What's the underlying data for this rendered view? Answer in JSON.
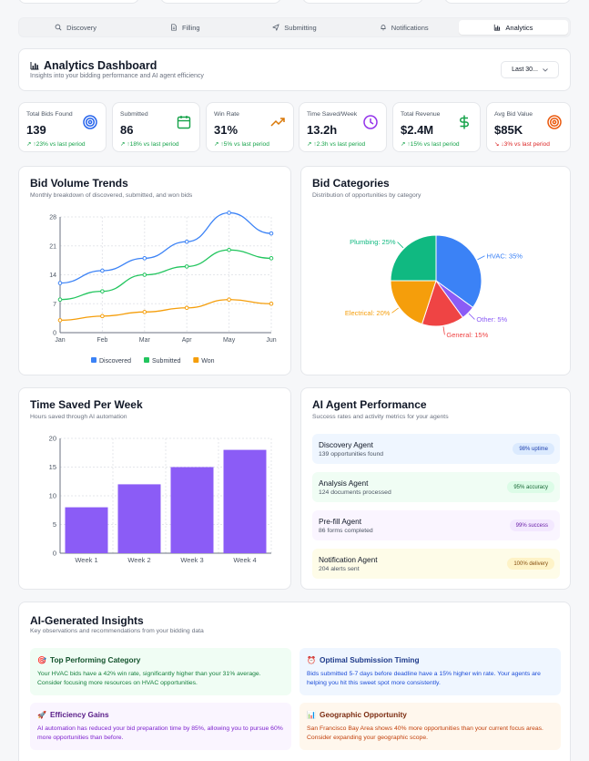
{
  "tabs": [
    {
      "label": "Discovery",
      "icon": "search-icon"
    },
    {
      "label": "Filling",
      "icon": "document-icon"
    },
    {
      "label": "Submitting",
      "icon": "send-icon"
    },
    {
      "label": "Notifications",
      "icon": "bell-icon"
    },
    {
      "label": "Analytics",
      "icon": "bar-chart-icon",
      "active": true
    }
  ],
  "header": {
    "title": "Analytics Dashboard",
    "subtitle": "Insights into your bidding performance and AI agent efficiency",
    "period": "Last 30..."
  },
  "stats": [
    {
      "label": "Total Bids Found",
      "value": "139",
      "change": "↗ ↑23% vs last period",
      "icon": "target-icon",
      "color": "#2563eb"
    },
    {
      "label": "Submitted",
      "value": "86",
      "change": "↗ ↑18% vs last period",
      "icon": "calendar-icon",
      "color": "#16a34a"
    },
    {
      "label": "Win Rate",
      "value": "31%",
      "change": "↗ ↑5% vs last period",
      "icon": "trend-up-icon",
      "color": "#d97706"
    },
    {
      "label": "Time Saved/Week",
      "value": "13.2h",
      "change": "↗ ↑2.3h vs last period",
      "icon": "clock-icon",
      "color": "#9333ea"
    },
    {
      "label": "Total Revenue",
      "value": "$2.4M",
      "change": "↗ ↑15% vs last period",
      "icon": "dollar-icon",
      "color": "#16a34a"
    },
    {
      "label": "Avg Bid Value",
      "value": "$85K",
      "change": "↘ ↓3% vs last period",
      "icon": "target-icon",
      "color": "#ea580c",
      "negative": true
    }
  ],
  "bid_volume": {
    "title": "Bid Volume Trends",
    "subtitle": "Monthly breakdown of discovered, submitted, and won bids"
  },
  "bid_categories": {
    "title": "Bid Categories",
    "subtitle": "Distribution of opportunities by category"
  },
  "time_saved": {
    "title": "Time Saved Per Week",
    "subtitle": "Hours saved through AI automation"
  },
  "chart_data": [
    {
      "type": "line",
      "title": "Bid Volume Trends",
      "categories": [
        "Jan",
        "Feb",
        "Mar",
        "Apr",
        "May",
        "Jun"
      ],
      "ylim": [
        0,
        28
      ],
      "yticks": [
        "0",
        "7",
        "14",
        "21",
        "28"
      ],
      "series": [
        {
          "name": "Discovered",
          "color": "#3b82f6",
          "values": [
            12,
            15,
            18,
            22,
            29,
            24
          ]
        },
        {
          "name": "Submitted",
          "color": "#22c55e",
          "values": [
            8,
            10,
            14,
            16,
            20,
            18
          ]
        },
        {
          "name": "Won",
          "color": "#f59e0b",
          "values": [
            3,
            4,
            5,
            6,
            8,
            7
          ]
        }
      ]
    },
    {
      "type": "pie",
      "title": "Bid Categories",
      "slices": [
        {
          "label": "HVAC: 35%",
          "value": 35,
          "color": "#3b82f6"
        },
        {
          "label": "Other: 5%",
          "value": 5,
          "color": "#8b5cf6"
        },
        {
          "label": "General: 15%",
          "value": 15,
          "color": "#ef4444"
        },
        {
          "label": "Electrical: 20%",
          "value": 20,
          "color": "#f59e0b"
        },
        {
          "label": "Plumbing: 25%",
          "value": 25,
          "color": "#10b981"
        }
      ]
    },
    {
      "type": "bar",
      "title": "Time Saved Per Week",
      "categories": [
        "Week 1",
        "Week 2",
        "Week 3",
        "Week 4"
      ],
      "values": [
        8,
        12,
        15,
        18
      ],
      "ylim": [
        0,
        20
      ],
      "yticks": [
        "0",
        "5",
        "10",
        "15",
        "20"
      ],
      "color": "#8b5cf6"
    }
  ],
  "agents": {
    "title": "AI Agent Performance",
    "subtitle": "Success rates and activity metrics for your agents",
    "items": [
      {
        "name": "Discovery Agent",
        "detail": "139 opportunities found",
        "badge": "98% uptime",
        "bg": "#eff6ff",
        "badge_bg": "#dbeafe",
        "badge_fg": "#1e40af"
      },
      {
        "name": "Analysis Agent",
        "detail": "124 documents processed",
        "badge": "95% accuracy",
        "bg": "#f0fdf4",
        "badge_bg": "#dcfce7",
        "badge_fg": "#166534"
      },
      {
        "name": "Pre-fill Agent",
        "detail": "86 forms completed",
        "badge": "99% success",
        "bg": "#faf5ff",
        "badge_bg": "#f3e8ff",
        "badge_fg": "#6b21a8"
      },
      {
        "name": "Notification Agent",
        "detail": "204 alerts sent",
        "badge": "100% delivery",
        "bg": "#fefce8",
        "badge_bg": "#fef3c7",
        "badge_fg": "#854d0e"
      }
    ]
  },
  "insights": {
    "title": "AI-Generated Insights",
    "subtitle": "Key observations and recommendations from your bidding data",
    "items": [
      {
        "emoji": "🎯",
        "title": "Top Performing Category",
        "body": "Your HVAC bids have a 42% win rate, significantly higher than your 31% average. Consider focusing more resources on HVAC opportunities.",
        "bg": "#f0fdf4",
        "fg": "#14532d",
        "body_fg": "#15803d"
      },
      {
        "emoji": "⏰",
        "title": "Optimal Submission Timing",
        "body": "Bids submitted 5-7 days before deadline have a 15% higher win rate. Your agents are helping you hit this sweet spot more consistently.",
        "bg": "#eff6ff",
        "fg": "#1e3a8a",
        "body_fg": "#1d4ed8"
      },
      {
        "emoji": "🚀",
        "title": "Efficiency Gains",
        "body": "AI automation has reduced your bid preparation time by 85%, allowing you to pursue 60% more opportunities than before.",
        "bg": "#faf5ff",
        "fg": "#581c87",
        "body_fg": "#7e22ce"
      },
      {
        "emoji": "📊",
        "title": "Geographic Opportunity",
        "body": "San Francisco Bay Area shows 40% more opportunities than your current focus areas. Consider expanding your geographic scope.",
        "bg": "#fff7ed",
        "fg": "#7c2d12",
        "body_fg": "#c2410c"
      }
    ]
  }
}
